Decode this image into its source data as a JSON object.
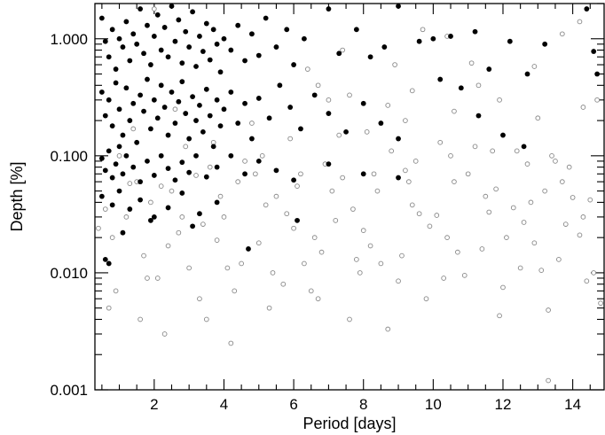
{
  "chart_data": {
    "type": "scatter",
    "title": "",
    "xlabel": "Period [days]",
    "ylabel": "Depth [%]",
    "xlim": [
      0.3,
      14.9
    ],
    "ylim": [
      0.001,
      2.0
    ],
    "yscale": "log",
    "grid": false,
    "x_ticks": [
      2,
      4,
      6,
      8,
      10,
      12,
      14
    ],
    "x_tick_labels": [
      "2",
      "4",
      "6",
      "8",
      "10",
      "12",
      "14"
    ],
    "y_ticks": [
      0.001,
      0.01,
      0.1,
      1.0
    ],
    "y_tick_labels": [
      "0.001",
      "0.010",
      "0.100",
      "1.000"
    ],
    "colors": {
      "filled": "#000000",
      "open": "#888888"
    },
    "series": [
      {
        "marker": "filled-circle",
        "points": [
          [
            0.5,
            1.5
          ],
          [
            0.6,
            0.95
          ],
          [
            0.7,
            0.7
          ],
          [
            0.8,
            1.2
          ],
          [
            0.9,
            0.55
          ],
          [
            1.0,
            1.0
          ],
          [
            1.1,
            0.85
          ],
          [
            1.2,
            1.4
          ],
          [
            1.3,
            0.65
          ],
          [
            1.4,
            1.1
          ],
          [
            1.5,
            0.9
          ],
          [
            1.6,
            1.8
          ],
          [
            1.7,
            0.75
          ],
          [
            1.8,
            1.3
          ],
          [
            1.9,
            0.6
          ],
          [
            2.0,
            1.05
          ],
          [
            2.1,
            1.6
          ],
          [
            2.2,
            0.8
          ],
          [
            2.3,
            1.25
          ],
          [
            2.4,
            0.7
          ],
          [
            2.5,
            1.9
          ],
          [
            2.6,
            0.95
          ],
          [
            2.7,
            1.45
          ],
          [
            2.8,
            0.62
          ],
          [
            2.9,
            1.15
          ],
          [
            3.0,
            0.85
          ],
          [
            3.1,
            1.7
          ],
          [
            3.2,
            0.58
          ],
          [
            3.3,
            1.05
          ],
          [
            3.4,
            0.78
          ],
          [
            3.5,
            1.35
          ],
          [
            3.6,
            0.66
          ],
          [
            3.7,
            1.2
          ],
          [
            3.8,
            0.9
          ],
          [
            3.9,
            0.52
          ],
          [
            4.0,
            1.0
          ],
          [
            4.2,
            0.8
          ],
          [
            4.4,
            1.3
          ],
          [
            4.6,
            0.65
          ],
          [
            4.8,
            1.1
          ],
          [
            5.0,
            0.72
          ],
          [
            5.2,
            1.5
          ],
          [
            5.5,
            0.85
          ],
          [
            5.8,
            1.2
          ],
          [
            6.0,
            0.6
          ],
          [
            6.3,
            1.0
          ],
          [
            7.0,
            1.8
          ],
          [
            7.3,
            0.75
          ],
          [
            7.8,
            1.2
          ],
          [
            8.2,
            0.7
          ],
          [
            8.6,
            0.85
          ],
          [
            9.0,
            1.9
          ],
          [
            9.6,
            0.95
          ],
          [
            10.0,
            1.0
          ],
          [
            10.2,
            0.45
          ],
          [
            10.5,
            1.05
          ],
          [
            10.8,
            0.38
          ],
          [
            11.2,
            1.15
          ],
          [
            11.6,
            0.55
          ],
          [
            12.2,
            0.95
          ],
          [
            12.7,
            0.5
          ],
          [
            13.2,
            0.9
          ],
          [
            14.4,
            1.8
          ],
          [
            14.6,
            0.78
          ],
          [
            14.7,
            0.5
          ],
          [
            0.5,
            0.35
          ],
          [
            0.6,
            0.22
          ],
          [
            0.7,
            0.3
          ],
          [
            0.8,
            0.18
          ],
          [
            0.9,
            0.42
          ],
          [
            1.0,
            0.25
          ],
          [
            1.1,
            0.15
          ],
          [
            1.2,
            0.38
          ],
          [
            1.3,
            0.2
          ],
          [
            1.4,
            0.28
          ],
          [
            1.5,
            0.13
          ],
          [
            1.6,
            0.33
          ],
          [
            1.7,
            0.24
          ],
          [
            1.8,
            0.45
          ],
          [
            1.9,
            0.17
          ],
          [
            2.0,
            0.3
          ],
          [
            2.1,
            0.21
          ],
          [
            2.2,
            0.4
          ],
          [
            2.3,
            0.26
          ],
          [
            2.4,
            0.15
          ],
          [
            2.5,
            0.35
          ],
          [
            2.6,
            0.19
          ],
          [
            2.7,
            0.29
          ],
          [
            2.8,
            0.43
          ],
          [
            2.9,
            0.23
          ],
          [
            3.0,
            0.14
          ],
          [
            3.1,
            0.32
          ],
          [
            3.2,
            0.2
          ],
          [
            3.3,
            0.27
          ],
          [
            3.4,
            0.16
          ],
          [
            3.5,
            0.37
          ],
          [
            3.6,
            0.22
          ],
          [
            3.7,
            0.12
          ],
          [
            3.8,
            0.3
          ],
          [
            3.9,
            0.18
          ],
          [
            4.0,
            0.25
          ],
          [
            4.2,
            0.35
          ],
          [
            4.4,
            0.19
          ],
          [
            4.6,
            0.28
          ],
          [
            4.8,
            0.14
          ],
          [
            5.0,
            0.31
          ],
          [
            5.3,
            0.21
          ],
          [
            5.6,
            0.4
          ],
          [
            5.9,
            0.26
          ],
          [
            6.2,
            0.17
          ],
          [
            6.6,
            0.33
          ],
          [
            7.0,
            0.23
          ],
          [
            7.5,
            0.16
          ],
          [
            8.0,
            0.28
          ],
          [
            8.5,
            0.19
          ],
          [
            9.0,
            0.14
          ],
          [
            11.3,
            0.22
          ],
          [
            12.0,
            0.15
          ],
          [
            12.6,
            0.12
          ],
          [
            0.5,
            0.095
          ],
          [
            0.6,
            0.075
          ],
          [
            0.7,
            0.11
          ],
          [
            0.8,
            0.065
          ],
          [
            0.9,
            0.085
          ],
          [
            1.0,
            0.12
          ],
          [
            1.1,
            0.07
          ],
          [
            1.2,
            0.1
          ],
          [
            1.4,
            0.08
          ],
          [
            1.6,
            0.06
          ],
          [
            1.8,
            0.09
          ],
          [
            2.0,
            0.068
          ],
          [
            2.2,
            0.1
          ],
          [
            2.4,
            0.078
          ],
          [
            2.6,
            0.062
          ],
          [
            2.8,
            0.088
          ],
          [
            3.0,
            0.072
          ],
          [
            3.2,
            0.1
          ],
          [
            3.5,
            0.066
          ],
          [
            3.8,
            0.08
          ],
          [
            4.2,
            0.1
          ],
          [
            4.6,
            0.07
          ],
          [
            5.0,
            0.09
          ],
          [
            5.5,
            0.075
          ],
          [
            6.0,
            0.062
          ],
          [
            7.0,
            0.085
          ],
          [
            8.0,
            0.07
          ],
          [
            9.0,
            0.065
          ],
          [
            0.5,
            0.045
          ],
          [
            0.8,
            0.038
          ],
          [
            1.0,
            0.05
          ],
          [
            1.3,
            0.035
          ],
          [
            1.6,
            0.042
          ],
          [
            2.0,
            0.03
          ],
          [
            2.4,
            0.036
          ],
          [
            2.8,
            0.048
          ],
          [
            3.3,
            0.032
          ],
          [
            3.8,
            0.04
          ],
          [
            0.6,
            0.013
          ],
          [
            1.1,
            0.022
          ],
          [
            1.9,
            0.028
          ],
          [
            3.1,
            0.025
          ],
          [
            4.7,
            0.016
          ],
          [
            6.1,
            0.028
          ],
          [
            0.7,
            0.012
          ]
        ]
      },
      {
        "marker": "open-circle",
        "points": [
          [
            1.2,
            0.03
          ],
          [
            2.5,
            0.05
          ],
          [
            3.6,
            0.08
          ],
          [
            4.4,
            0.06
          ],
          [
            5.1,
            0.1
          ],
          [
            6.2,
            0.07
          ],
          [
            7.3,
            0.15
          ],
          [
            8.4,
            0.05
          ],
          [
            9.5,
            0.09
          ],
          [
            10.6,
            0.06
          ],
          [
            11.7,
            0.11
          ],
          [
            12.8,
            0.04
          ],
          [
            13.9,
            0.08
          ],
          [
            0.8,
            0.02
          ],
          [
            1.9,
            0.04
          ],
          [
            2.9,
            0.12
          ],
          [
            4.0,
            0.03
          ],
          [
            5.5,
            0.045
          ],
          [
            6.6,
            0.02
          ],
          [
            7.7,
            0.035
          ],
          [
            8.8,
            0.11
          ],
          [
            9.9,
            0.025
          ],
          [
            11.0,
            0.07
          ],
          [
            12.1,
            0.02
          ],
          [
            13.2,
            0.05
          ],
          [
            14.3,
            0.03
          ],
          [
            0.9,
            0.007
          ],
          [
            2.1,
            0.009
          ],
          [
            3.3,
            0.006
          ],
          [
            4.5,
            0.012
          ],
          [
            5.7,
            0.008
          ],
          [
            6.8,
            0.015
          ],
          [
            7.9,
            0.01
          ],
          [
            9.1,
            0.014
          ],
          [
            10.3,
            0.009
          ],
          [
            11.4,
            0.016
          ],
          [
            12.5,
            0.011
          ],
          [
            13.6,
            0.013
          ],
          [
            14.6,
            0.01
          ],
          [
            1.5,
            0.06
          ],
          [
            2.7,
            0.022
          ],
          [
            3.9,
            0.045
          ],
          [
            5.0,
            0.018
          ],
          [
            6.1,
            0.055
          ],
          [
            7.2,
            0.028
          ],
          [
            8.3,
            0.07
          ],
          [
            9.4,
            0.038
          ],
          [
            10.5,
            0.1
          ],
          [
            11.6,
            0.033
          ],
          [
            12.7,
            0.085
          ],
          [
            13.8,
            0.026
          ],
          [
            0.6,
            0.035
          ],
          [
            1.7,
            0.014
          ],
          [
            2.8,
            0.03
          ],
          [
            3.8,
            0.019
          ],
          [
            4.9,
            0.07
          ],
          [
            6.0,
            0.024
          ],
          [
            7.1,
            0.05
          ],
          [
            8.2,
            0.017
          ],
          [
            9.3,
            0.06
          ],
          [
            10.4,
            0.02
          ],
          [
            11.5,
            0.045
          ],
          [
            12.6,
            0.027
          ],
          [
            13.7,
            0.06
          ],
          [
            14.5,
            0.042
          ],
          [
            1.0,
            0.1
          ],
          [
            2.2,
            0.055
          ],
          [
            3.4,
            0.026
          ],
          [
            4.6,
            0.09
          ],
          [
            5.8,
            0.032
          ],
          [
            6.9,
            0.085
          ],
          [
            8.0,
            0.023
          ],
          [
            9.2,
            0.075
          ],
          [
            10.1,
            0.031
          ],
          [
            11.2,
            0.12
          ],
          [
            12.3,
            0.036
          ],
          [
            13.4,
            0.1
          ],
          [
            14.2,
            0.021
          ],
          [
            1.4,
            0.17
          ],
          [
            2.6,
            0.25
          ],
          [
            3.7,
            0.13
          ],
          [
            4.8,
            0.19
          ],
          [
            5.9,
            0.14
          ],
          [
            7.0,
            0.3
          ],
          [
            8.1,
            0.16
          ],
          [
            9.2,
            0.2
          ],
          [
            10.2,
            0.13
          ],
          [
            11.3,
            0.4
          ],
          [
            12.4,
            0.11
          ],
          [
            13.5,
            0.09
          ],
          [
            14.7,
            0.3
          ],
          [
            0.7,
            0.005
          ],
          [
            1.6,
            0.004
          ],
          [
            2.3,
            0.003
          ],
          [
            3.5,
            0.004
          ],
          [
            4.2,
            0.0025
          ],
          [
            5.3,
            0.005
          ],
          [
            6.5,
            0.007
          ],
          [
            7.6,
            0.004
          ],
          [
            8.7,
            0.0033
          ],
          [
            9.8,
            0.006
          ],
          [
            11.9,
            0.0043
          ],
          [
            13.3,
            0.0048
          ],
          [
            13.3,
            0.0012
          ],
          [
            14.8,
            0.0055
          ],
          [
            0.4,
            0.024
          ],
          [
            1.3,
            0.058
          ],
          [
            2.4,
            0.017
          ],
          [
            3.2,
            0.068
          ],
          [
            4.1,
            0.011
          ],
          [
            5.2,
            0.038
          ],
          [
            6.3,
            0.012
          ],
          [
            7.4,
            0.065
          ],
          [
            8.5,
            0.012
          ],
          [
            9.6,
            0.032
          ],
          [
            10.7,
            0.015
          ],
          [
            11.8,
            0.052
          ],
          [
            12.9,
            0.018
          ],
          [
            14.0,
            0.044
          ],
          [
            1.8,
            0.009
          ],
          [
            3.0,
            0.011
          ],
          [
            4.3,
            0.007
          ],
          [
            5.4,
            0.01
          ],
          [
            6.7,
            0.006
          ],
          [
            7.8,
            0.013
          ],
          [
            9.0,
            0.0085
          ],
          [
            10.9,
            0.0095
          ],
          [
            12.0,
            0.0075
          ],
          [
            13.1,
            0.0105
          ],
          [
            14.4,
            0.0085
          ],
          [
            2.0,
            1.8
          ],
          [
            4.8,
            1.1
          ],
          [
            6.4,
            0.55
          ],
          [
            7.4,
            0.8
          ],
          [
            8.9,
            0.6
          ],
          [
            9.7,
            1.2
          ],
          [
            10.4,
            1.05
          ],
          [
            11.1,
            0.62
          ],
          [
            12.9,
            0.58
          ],
          [
            13.7,
            1.1
          ],
          [
            14.2,
            1.4
          ],
          [
            6.7,
            0.4
          ],
          [
            7.6,
            0.33
          ],
          [
            8.7,
            0.27
          ],
          [
            9.4,
            0.36
          ],
          [
            10.6,
            0.24
          ],
          [
            11.9,
            0.3
          ],
          [
            13.0,
            0.21
          ],
          [
            14.3,
            0.26
          ]
        ]
      }
    ]
  }
}
